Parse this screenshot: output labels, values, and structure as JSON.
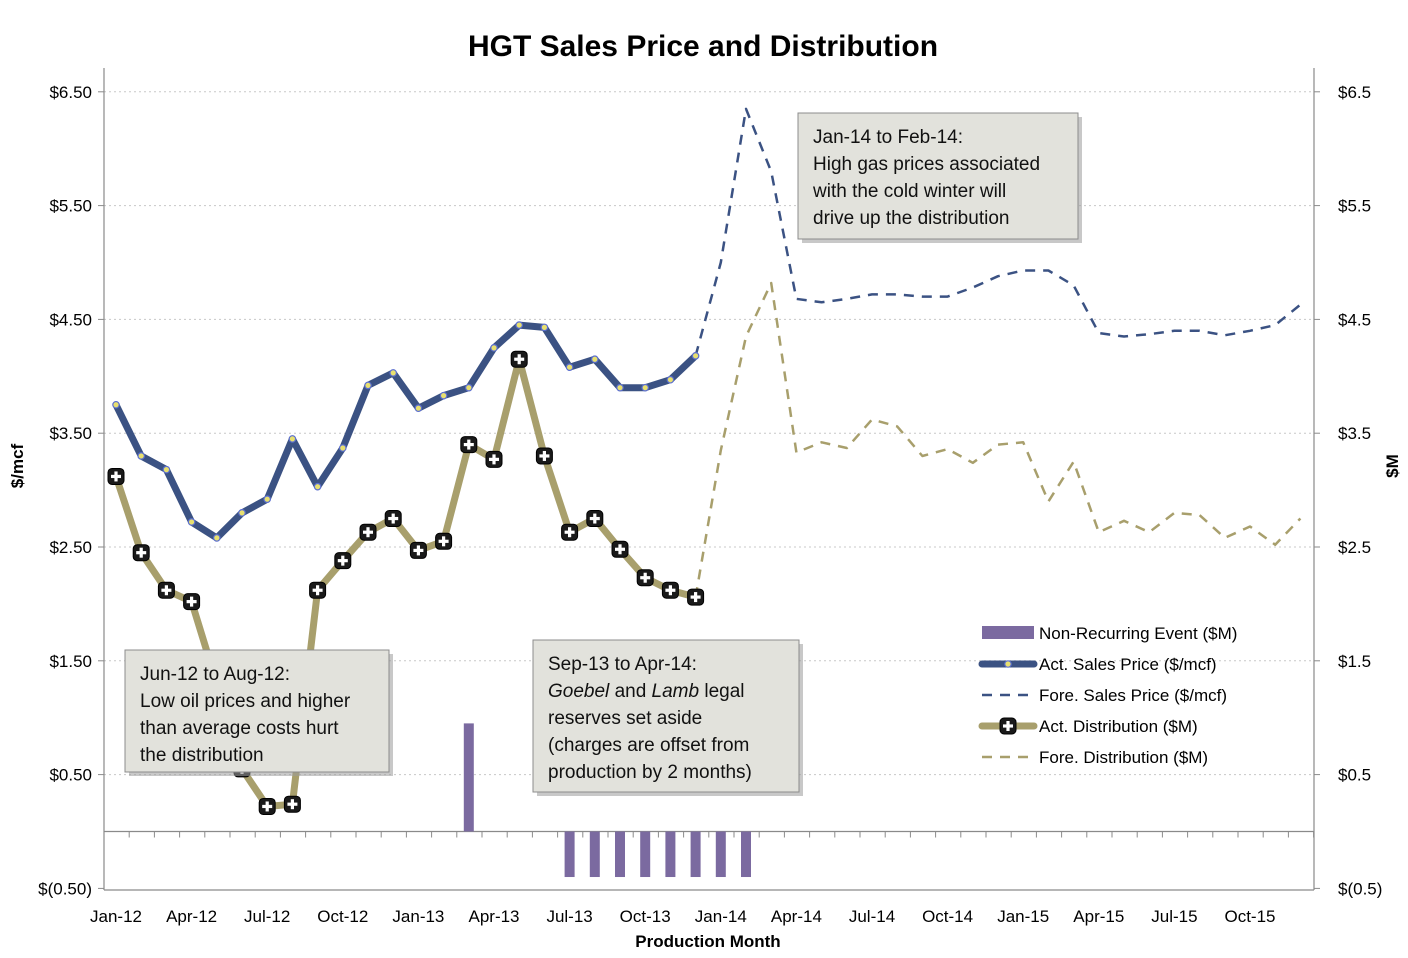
{
  "chart_data": {
    "type": "line",
    "title": "HGT Sales Price and Distribution",
    "xlabel": "Production Month",
    "ylabel_left": "$/mcf",
    "ylabel_right": "$M",
    "ylim": [
      -0.5,
      6.5
    ],
    "yticks_left": [
      "$6.50",
      "$5.50",
      "$4.50",
      "$3.50",
      "$2.50",
      "$1.50",
      "$0.50",
      "$(0.50)"
    ],
    "yticks_right": [
      "$6.5",
      "$5.5",
      "$4.5",
      "$3.5",
      "$2.5",
      "$1.5",
      "$0.5",
      "$(0.5)"
    ],
    "ytick_values": [
      6.5,
      5.5,
      4.5,
      3.5,
      2.5,
      1.5,
      0.5,
      -0.5
    ],
    "x_tick_labels": [
      "Jan-12",
      "Apr-12",
      "Jul-12",
      "Oct-12",
      "Jan-13",
      "Apr-13",
      "Jul-13",
      "Oct-13",
      "Jan-14",
      "Apr-14",
      "Jul-14",
      "Oct-14",
      "Jan-15",
      "Apr-15",
      "Jul-15",
      "Oct-15"
    ],
    "grid": "horizontal dotted",
    "legend_position": "right, lower middle",
    "series": [
      {
        "name": "Non-Recurring Event ($M)",
        "kind": "bar",
        "color": "#7b6aa0",
        "points": [
          [
            14,
            0.95
          ],
          [
            18,
            -0.4
          ],
          [
            19,
            -0.4
          ],
          [
            20,
            -0.4
          ],
          [
            21,
            -0.4
          ],
          [
            22,
            -0.4
          ],
          [
            23,
            -0.4
          ],
          [
            24,
            -0.4
          ],
          [
            25,
            -0.4
          ]
        ]
      },
      {
        "name": "Act. Sales Price ($/mcf)",
        "kind": "line-solid",
        "color": "#3b5283",
        "marker_color": "#e8e070",
        "points": [
          [
            0,
            3.75
          ],
          [
            1,
            3.3
          ],
          [
            2,
            3.18
          ],
          [
            3,
            2.72
          ],
          [
            4,
            2.58
          ],
          [
            5,
            2.8
          ],
          [
            6,
            2.92
          ],
          [
            7,
            3.45
          ],
          [
            8,
            3.03
          ],
          [
            9,
            3.37
          ],
          [
            10,
            3.92
          ],
          [
            11,
            4.03
          ],
          [
            12,
            3.72
          ],
          [
            13,
            3.83
          ],
          [
            14,
            3.9
          ],
          [
            15,
            4.25
          ],
          [
            16,
            4.45
          ],
          [
            17,
            4.43
          ],
          [
            18,
            4.08
          ],
          [
            19,
            4.15
          ],
          [
            20,
            3.9
          ],
          [
            21,
            3.9
          ],
          [
            22,
            3.97
          ],
          [
            23,
            4.18
          ]
        ]
      },
      {
        "name": "Fore. Sales Price ($/mcf)",
        "kind": "line-dashed",
        "color": "#3b5283",
        "points": [
          [
            23,
            4.18
          ],
          [
            24,
            5.0
          ],
          [
            25,
            6.35
          ],
          [
            26,
            5.8
          ],
          [
            27,
            4.68
          ],
          [
            28,
            4.65
          ],
          [
            29,
            4.68
          ],
          [
            30,
            4.72
          ],
          [
            31,
            4.72
          ],
          [
            32,
            4.7
          ],
          [
            33,
            4.7
          ],
          [
            34,
            4.78
          ],
          [
            35,
            4.88
          ],
          [
            36,
            4.93
          ],
          [
            37,
            4.93
          ],
          [
            38,
            4.8
          ],
          [
            39,
            4.38
          ],
          [
            40,
            4.35
          ],
          [
            41,
            4.37
          ],
          [
            42,
            4.4
          ],
          [
            43,
            4.4
          ],
          [
            44,
            4.36
          ],
          [
            45,
            4.4
          ],
          [
            46,
            4.45
          ],
          [
            47,
            4.63
          ]
        ]
      },
      {
        "name": "Act. Distribution ($M)",
        "kind": "line-solid",
        "color": "#a89f6c",
        "marker_color": "#1a1a1a",
        "points": [
          [
            0,
            3.12
          ],
          [
            1,
            2.45
          ],
          [
            2,
            2.12
          ],
          [
            3,
            2.02
          ],
          [
            4,
            1.3
          ],
          [
            5,
            0.55
          ],
          [
            6,
            0.22
          ],
          [
            7,
            0.24
          ],
          [
            8,
            2.12
          ],
          [
            9,
            2.38
          ],
          [
            10,
            2.63
          ],
          [
            11,
            2.75
          ],
          [
            12,
            2.47
          ],
          [
            13,
            2.55
          ],
          [
            14,
            3.4
          ],
          [
            15,
            3.27
          ],
          [
            16,
            4.15
          ],
          [
            17,
            3.3
          ],
          [
            18,
            2.63
          ],
          [
            19,
            2.75
          ],
          [
            20,
            2.48
          ],
          [
            21,
            2.23
          ],
          [
            22,
            2.12
          ],
          [
            23,
            2.06
          ]
        ]
      },
      {
        "name": "Fore. Distribution ($M)",
        "kind": "line-dashed",
        "color": "#a89f6c",
        "points": [
          [
            23,
            2.06
          ],
          [
            24,
            3.35
          ],
          [
            25,
            4.35
          ],
          [
            26,
            4.82
          ],
          [
            27,
            3.33
          ],
          [
            28,
            3.42
          ],
          [
            29,
            3.37
          ],
          [
            30,
            3.62
          ],
          [
            31,
            3.56
          ],
          [
            32,
            3.3
          ],
          [
            33,
            3.36
          ],
          [
            34,
            3.24
          ],
          [
            35,
            3.4
          ],
          [
            36,
            3.42
          ],
          [
            37,
            2.9
          ],
          [
            38,
            3.25
          ],
          [
            39,
            2.63
          ],
          [
            40,
            2.73
          ],
          [
            41,
            2.63
          ],
          [
            42,
            2.8
          ],
          [
            43,
            2.78
          ],
          [
            44,
            2.58
          ],
          [
            45,
            2.68
          ],
          [
            46,
            2.52
          ],
          [
            47,
            2.75
          ]
        ]
      }
    ],
    "annotations": [
      {
        "lines": [
          "Jan-14 to Feb-14:",
          "High gas prices associated",
          "with the cold winter will",
          "drive up the distribution"
        ]
      },
      {
        "lines": [
          "Jun-12 to Aug-12:",
          "Low oil prices and higher",
          "than average costs hurt",
          "the distribution"
        ]
      },
      {
        "lines": [
          "Sep-13 to Apr-14:",
          "Goebel and Lamb legal",
          "reserves set aside",
          "(charges are offset from",
          "production by 2 months)"
        ],
        "italic_words": [
          "Goebel",
          "Lamb"
        ]
      }
    ]
  }
}
